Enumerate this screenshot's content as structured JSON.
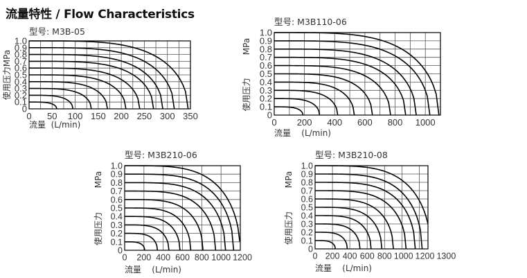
{
  "page_title": "流量特性 / Flow Characteristics",
  "chart_data": [
    {
      "type": "line",
      "title": "型号: M3B-05",
      "ylabel": "使用压力MPa",
      "xlabel": "流量  (L/min)",
      "xlim": [
        0,
        350
      ],
      "ylim": [
        0,
        1.0
      ],
      "x_ticks": [
        "0",
        "50",
        "100",
        "150",
        "200",
        "250",
        "300",
        "350"
      ],
      "x_tick_values": [
        0,
        50,
        100,
        150,
        200,
        250,
        300,
        350
      ],
      "y_ticks": [
        "0",
        "0.1",
        "0.2",
        "0.3",
        "0.4",
        "0.5",
        "0.6",
        "0.7",
        "0.8",
        "0.9",
        "1.0"
      ],
      "x_grid_step": 25,
      "y_grid_step": 0.1,
      "grid": true,
      "series": [
        {
          "set_pressure": 0.1,
          "end_flow": 60,
          "end_pressure": 0
        },
        {
          "set_pressure": 0.2,
          "end_flow": 95,
          "end_pressure": 0
        },
        {
          "set_pressure": 0.3,
          "end_flow": 135,
          "end_pressure": 0
        },
        {
          "set_pressure": 0.4,
          "end_flow": 170,
          "end_pressure": 0
        },
        {
          "set_pressure": 0.5,
          "end_flow": 210,
          "end_pressure": 0
        },
        {
          "set_pressure": 0.6,
          "end_flow": 240,
          "end_pressure": 0
        },
        {
          "set_pressure": 0.7,
          "end_flow": 270,
          "end_pressure": 0
        },
        {
          "set_pressure": 0.8,
          "end_flow": 290,
          "end_pressure": 0
        },
        {
          "set_pressure": 0.9,
          "end_flow": 315,
          "end_pressure": 0
        },
        {
          "set_pressure": 1.0,
          "end_flow": 345,
          "end_pressure": 0
        }
      ]
    },
    {
      "type": "line",
      "title": "型号: M3B110-06",
      "ylabel": "使用压力",
      "yunit": "MPa",
      "xlabel": "流量    (L/min)",
      "xlim": [
        0,
        1100
      ],
      "ylim": [
        0,
        1.0
      ],
      "x_ticks": [
        "0",
        "200",
        "400",
        "600",
        "800",
        "1000"
      ],
      "x_tick_values": [
        0,
        200,
        400,
        600,
        800,
        1000
      ],
      "y_ticks": [
        "0",
        "0.1",
        "0.2",
        "0.3",
        "0.4",
        "0.5",
        "0.6",
        "0.7",
        "0.8",
        "0.9",
        "1.0"
      ],
      "x_grid_step": 100,
      "y_grid_step": 0.1,
      "grid": true,
      "series": [
        {
          "set_pressure": 0.1,
          "end_flow": 190,
          "end_pressure": 0
        },
        {
          "set_pressure": 0.2,
          "end_flow": 300,
          "end_pressure": 0
        },
        {
          "set_pressure": 0.3,
          "end_flow": 420,
          "end_pressure": 0
        },
        {
          "set_pressure": 0.4,
          "end_flow": 530,
          "end_pressure": 0
        },
        {
          "set_pressure": 0.5,
          "end_flow": 650,
          "end_pressure": 0
        },
        {
          "set_pressure": 0.6,
          "end_flow": 770,
          "end_pressure": 0
        },
        {
          "set_pressure": 0.7,
          "end_flow": 870,
          "end_pressure": 0
        },
        {
          "set_pressure": 0.8,
          "end_flow": 940,
          "end_pressure": 0
        },
        {
          "set_pressure": 0.9,
          "end_flow": 1030,
          "end_pressure": 0
        },
        {
          "set_pressure": 1.0,
          "end_flow": 1090,
          "end_pressure": 0
        }
      ]
    },
    {
      "type": "line",
      "title": "型号: M3B210-06",
      "ylabel": "使用压力",
      "yunit": "MPa",
      "xlabel": "流量    (L/min)",
      "xlim": [
        0,
        1200
      ],
      "ylim": [
        0,
        1.0
      ],
      "x_ticks": [
        "0",
        "200",
        "400",
        "600",
        "800",
        "1000",
        "1200"
      ],
      "x_tick_values": [
        0,
        200,
        400,
        600,
        800,
        1000,
        1200
      ],
      "y_ticks": [
        "0",
        "0.1",
        "0.2",
        "0.3",
        "0.4",
        "0.5",
        "0.6",
        "0.7",
        "0.8",
        "0.9",
        "1.0"
      ],
      "x_grid_step": 200,
      "y_grid_step": 0.1,
      "grid": true,
      "series": [
        {
          "set_pressure": 0.1,
          "end_flow": 208,
          "end_pressure": 0
        },
        {
          "set_pressure": 0.2,
          "end_flow": 340,
          "end_pressure": 0
        },
        {
          "set_pressure": 0.3,
          "end_flow": 459,
          "end_pressure": 0
        },
        {
          "set_pressure": 0.4,
          "end_flow": 574,
          "end_pressure": 0
        },
        {
          "set_pressure": 0.5,
          "end_flow": 686,
          "end_pressure": 0
        },
        {
          "set_pressure": 0.6,
          "end_flow": 813,
          "end_pressure": 0
        },
        {
          "set_pressure": 0.7,
          "end_flow": 944,
          "end_pressure": 0
        },
        {
          "set_pressure": 0.8,
          "end_flow": 1047,
          "end_pressure": 0
        },
        {
          "set_pressure": 0.9,
          "end_flow": 1131,
          "end_pressure": 0
        },
        {
          "set_pressure": 1.0,
          "end_flow": 1195,
          "end_pressure": 0.1
        }
      ]
    },
    {
      "type": "line",
      "title": "型号: M3B210-08",
      "ylabel": "使用压力",
      "yunit": "MPa",
      "xlabel": "流量    (L/min)",
      "xlim": [
        0,
        1300
      ],
      "ylim": [
        0,
        1.0
      ],
      "x_ticks": [
        "0",
        "200",
        "400",
        "600",
        "800",
        "1000",
        "1200",
        "1300"
      ],
      "x_tick_values": [
        0,
        200,
        400,
        600,
        800,
        1000,
        1200,
        1300
      ],
      "y_ticks": [
        "0",
        "0.1",
        "0.2",
        "0.3",
        "0.4",
        "0.5",
        "0.6",
        "0.7",
        "0.8",
        "0.9",
        "1.0"
      ],
      "x_grid_step": 200,
      "y_grid_step": 0.1,
      "grid": true,
      "series": [
        {
          "set_pressure": 0.1,
          "end_flow": 233,
          "end_pressure": 0
        },
        {
          "set_pressure": 0.2,
          "end_flow": 371,
          "end_pressure": 0
        },
        {
          "set_pressure": 0.3,
          "end_flow": 517,
          "end_pressure": 0
        },
        {
          "set_pressure": 0.4,
          "end_flow": 645,
          "end_pressure": 0
        },
        {
          "set_pressure": 0.5,
          "end_flow": 769,
          "end_pressure": 0
        },
        {
          "set_pressure": 0.6,
          "end_flow": 902,
          "end_pressure": 0
        },
        {
          "set_pressure": 0.7,
          "end_flow": 1048,
          "end_pressure": 0
        },
        {
          "set_pressure": 0.8,
          "end_flow": 1154,
          "end_pressure": 0
        },
        {
          "set_pressure": 0.9,
          "end_flow": 1233,
          "end_pressure": 0
        },
        {
          "set_pressure": 1.0,
          "end_flow": 1300,
          "end_pressure": 0.3
        }
      ]
    }
  ]
}
